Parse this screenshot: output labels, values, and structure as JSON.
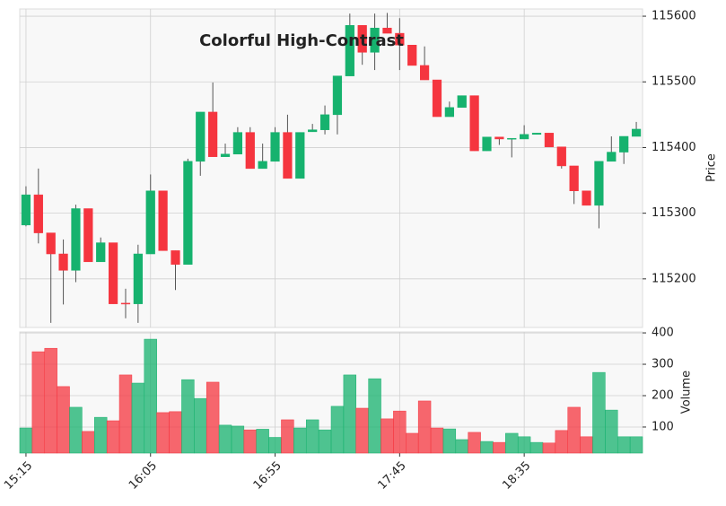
{
  "chart_data": {
    "type": "candlestick",
    "title": "Colorful High-Contrast",
    "categories": [
      "15:15",
      null,
      null,
      null,
      null,
      null,
      null,
      null,
      null,
      null,
      "16:05",
      null,
      null,
      null,
      null,
      null,
      null,
      null,
      null,
      null,
      "16:55",
      null,
      null,
      null,
      null,
      null,
      null,
      null,
      null,
      null,
      "17:45",
      null,
      null,
      null,
      null,
      null,
      null,
      null,
      null,
      null,
      "18:35",
      null,
      null,
      null,
      null,
      null,
      null,
      null,
      null,
      null
    ],
    "open": [
      115282,
      115328,
      115270,
      115238,
      115213,
      115307,
      115226,
      115255,
      115163,
      115162,
      115238,
      115334,
      115243,
      115222,
      115379,
      115454,
      115386,
      115390,
      115423,
      115368,
      115379,
      115423,
      115353,
      115424,
      115427,
      115450,
      115509,
      115586,
      115545,
      115582,
      115574,
      115556,
      115525,
      115503,
      115447,
      115461,
      115479,
      115395,
      115416,
      115413,
      115413,
      115420,
      115422,
      115401,
      115372,
      115334,
      115312,
      115379,
      115393,
      115417
    ],
    "high": [
      115341,
      115368,
      115270,
      115260,
      115313,
      115307,
      115263,
      115255,
      115185,
      115252,
      115359,
      115334,
      115243,
      115383,
      115454,
      115499,
      115406,
      115431,
      115431,
      115406,
      115431,
      115450,
      115423,
      115436,
      115464,
      115509,
      115604,
      115586,
      115604,
      115605,
      115597,
      115556,
      115554,
      115503,
      115470,
      115479,
      115479,
      115416,
      115416,
      115414,
      115434,
      115422,
      115422,
      115401,
      115372,
      115334,
      115379,
      115417,
      115417,
      115439
    ],
    "low": [
      115280,
      115254,
      115133,
      115161,
      115195,
      115226,
      115226,
      115162,
      115140,
      115133,
      115238,
      115243,
      115183,
      115222,
      115357,
      115386,
      115386,
      115390,
      115368,
      115368,
      115379,
      115353,
      115353,
      115424,
      115420,
      115420,
      115509,
      115526,
      115518,
      115574,
      115518,
      115525,
      115503,
      115447,
      115447,
      115461,
      115395,
      115395,
      115404,
      115385,
      115413,
      115420,
      115401,
      115368,
      115314,
      115312,
      115277,
      115379,
      115375,
      115417
    ],
    "close": [
      115328,
      115270,
      115238,
      115213,
      115307,
      115226,
      115255,
      115162,
      115162,
      115238,
      115334,
      115243,
      115222,
      115379,
      115454,
      115386,
      115390,
      115423,
      115368,
      115379,
      115423,
      115353,
      115423,
      115427,
      115450,
      115509,
      115586,
      115545,
      115582,
      115574,
      115556,
      115525,
      115503,
      115447,
      115461,
      115479,
      115395,
      115416,
      115413,
      115414,
      115420,
      115422,
      115401,
      115372,
      115334,
      115312,
      115379,
      115393,
      115417,
      115428
    ],
    "volume": [
      97,
      340,
      351,
      229,
      163,
      86,
      131,
      120,
      266,
      240,
      380,
      146,
      149,
      251,
      191,
      243,
      106,
      103,
      91,
      93,
      67,
      123,
      97,
      123,
      91,
      166,
      266,
      160,
      254,
      126,
      151,
      80,
      183,
      97,
      94,
      60,
      83,
      54,
      51,
      80,
      69,
      51,
      49,
      89,
      163,
      69,
      274,
      154,
      69,
      69
    ],
    "ylim": [
      115126,
      115611
    ],
    "yticks": [
      115200,
      115300,
      115400,
      115500,
      115600
    ],
    "ylabel": "Price",
    "volume_ylim": [
      17,
      403
    ],
    "volume_yticks": [
      100,
      200,
      300,
      400
    ],
    "volume_label": "Volume",
    "up_color": "#16b26e",
    "down_color": "#f5353f",
    "grid": true
  }
}
